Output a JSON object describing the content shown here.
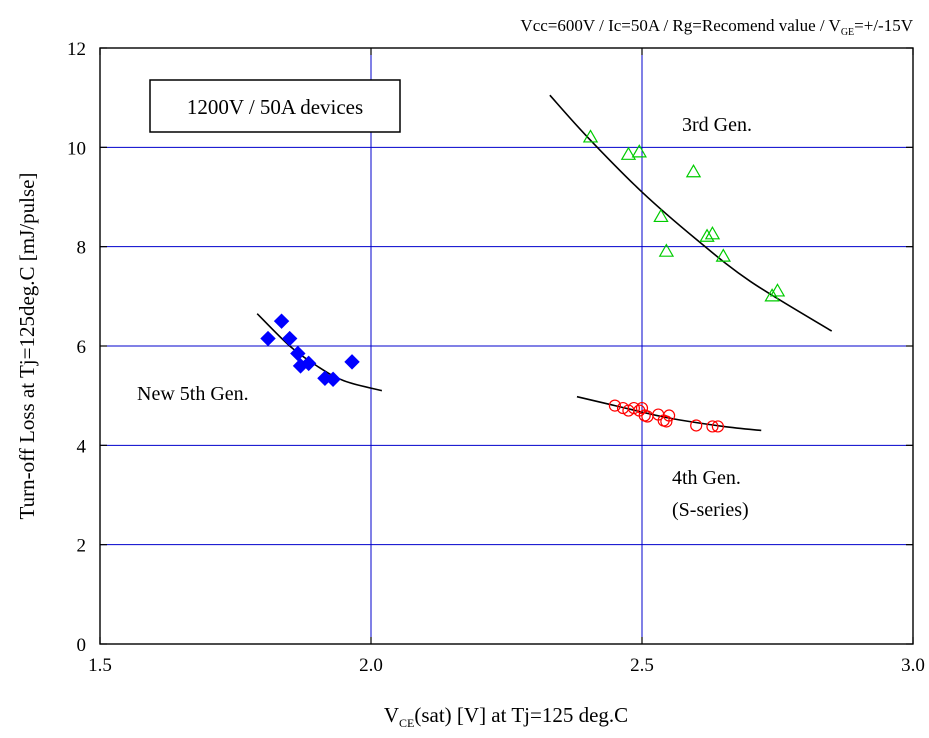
{
  "chart_data": {
    "type": "scatter",
    "conditions": {
      "prefix": "Vcc=600V / Ic=50A / Rg=Recomend value / V",
      "sub": "GE",
      "suffix": "=+/-15V"
    },
    "box_label": "1200V / 50A devices",
    "xlabel": {
      "prefix": "V",
      "sub": "CE",
      "suffix": "(sat) [V] at Tj=125 deg.C"
    },
    "ylabel": "Turn-off Loss  at Tj=125deg.C [mJ/pulse]",
    "xlim": [
      1.5,
      3.0
    ],
    "ylim": [
      0,
      12
    ],
    "x_ticks": [
      "1.5",
      "2.0",
      "2.5",
      "3.0"
    ],
    "y_ticks": [
      "0",
      "2",
      "4",
      "6",
      "8",
      "10",
      "12"
    ],
    "grid": true,
    "colors": {
      "new5th": "#0000ff",
      "gen4": "#ff0000",
      "gen3": "#00cc00",
      "grid": "#0000cc",
      "fit": "#000000"
    },
    "series": [
      {
        "name": "New 5th Gen.",
        "marker": "diamond",
        "points": [
          [
            1.81,
            6.15
          ],
          [
            1.835,
            6.5
          ],
          [
            1.85,
            6.15
          ],
          [
            1.865,
            5.85
          ],
          [
            1.87,
            5.6
          ],
          [
            1.885,
            5.65
          ],
          [
            1.915,
            5.35
          ],
          [
            1.93,
            5.33
          ],
          [
            1.965,
            5.68
          ]
        ],
        "fit": [
          [
            1.79,
            6.65
          ],
          [
            1.85,
            6.0
          ],
          [
            1.9,
            5.6
          ],
          [
            1.95,
            5.3
          ],
          [
            2.02,
            5.1
          ]
        ]
      },
      {
        "name": "4th Gen.",
        "name2": "(S-series)",
        "marker": "circle",
        "points": [
          [
            2.45,
            4.8
          ],
          [
            2.465,
            4.75
          ],
          [
            2.475,
            4.7
          ],
          [
            2.485,
            4.75
          ],
          [
            2.495,
            4.7
          ],
          [
            2.5,
            4.75
          ],
          [
            2.505,
            4.6
          ],
          [
            2.51,
            4.58
          ],
          [
            2.53,
            4.62
          ],
          [
            2.54,
            4.5
          ],
          [
            2.545,
            4.48
          ],
          [
            2.55,
            4.6
          ],
          [
            2.6,
            4.4
          ],
          [
            2.63,
            4.38
          ],
          [
            2.64,
            4.38
          ]
        ],
        "fit": [
          [
            2.38,
            4.98
          ],
          [
            2.45,
            4.8
          ],
          [
            2.55,
            4.55
          ],
          [
            2.65,
            4.38
          ],
          [
            2.72,
            4.3
          ]
        ]
      },
      {
        "name": "3rd Gen.",
        "marker": "triangle",
        "points": [
          [
            2.405,
            10.2
          ],
          [
            2.475,
            9.85
          ],
          [
            2.495,
            9.9
          ],
          [
            2.535,
            8.6
          ],
          [
            2.545,
            7.9
          ],
          [
            2.595,
            9.5
          ],
          [
            2.62,
            8.2
          ],
          [
            2.63,
            8.25
          ],
          [
            2.65,
            7.8
          ],
          [
            2.74,
            7.0
          ],
          [
            2.75,
            7.1
          ]
        ],
        "fit": [
          [
            2.33,
            11.05
          ],
          [
            2.4,
            10.2
          ],
          [
            2.5,
            9.1
          ],
          [
            2.6,
            8.15
          ],
          [
            2.7,
            7.3
          ],
          [
            2.85,
            6.3
          ]
        ]
      }
    ]
  }
}
